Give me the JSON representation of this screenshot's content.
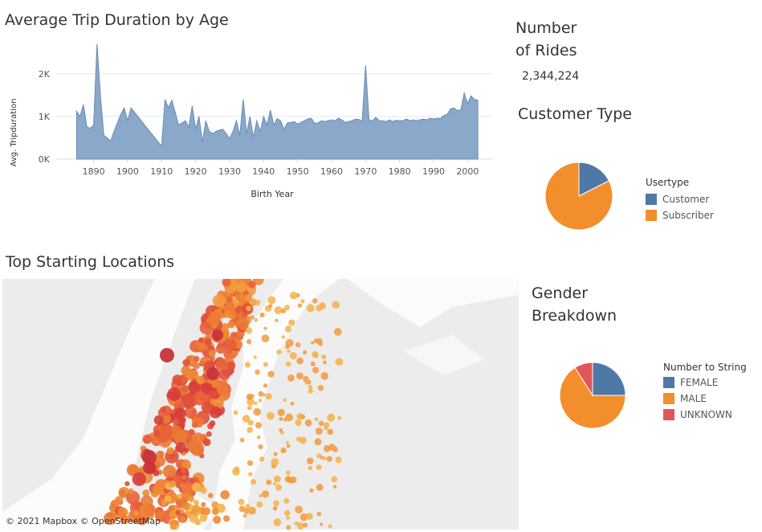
{
  "colors": {
    "area": "#8aa8c9",
    "area_line": "#6a8bb3",
    "customer": "#4e79a7",
    "subscriber": "#f28e2b",
    "female": "#4e79a7",
    "male": "#f28e2b",
    "unknown": "#e15759"
  },
  "number_of_rides": {
    "title_line1": "Number",
    "title_line2": "of Rides",
    "value": "2,344,224"
  },
  "map": {
    "title": "Top Starting Locations",
    "attribution": "© 2021 Mapbox  © OpenStreetMap"
  },
  "chart_data": [
    {
      "type": "area",
      "title": "Average Trip Duration by Age",
      "xlabel": "Birth Year",
      "ylabel": "Avg. Tripduration",
      "xlim": [
        1879,
        2007
      ],
      "ylim": [
        0,
        2900
      ],
      "x_ticks": [
        1890,
        1900,
        1910,
        1920,
        1930,
        1940,
        1950,
        1960,
        1970,
        1980,
        1990,
        2000
      ],
      "y_ticks": [
        {
          "value": 0,
          "label": "0K"
        },
        {
          "value": 1000,
          "label": "1K"
        },
        {
          "value": 2000,
          "label": "2K"
        }
      ],
      "x": [
        1885,
        1886,
        1887,
        1888,
        1889,
        1890,
        1891,
        1892,
        1893,
        1894,
        1895,
        1896,
        1897,
        1898,
        1899,
        1900,
        1901,
        1902,
        1903,
        1904,
        1905,
        1906,
        1907,
        1908,
        1909,
        1910,
        1911,
        1912,
        1913,
        1914,
        1915,
        1916,
        1917,
        1918,
        1919,
        1920,
        1921,
        1922,
        1923,
        1924,
        1925,
        1926,
        1927,
        1928,
        1929,
        1930,
        1931,
        1932,
        1933,
        1934,
        1935,
        1936,
        1937,
        1938,
        1939,
        1940,
        1941,
        1942,
        1943,
        1944,
        1945,
        1946,
        1947,
        1948,
        1949,
        1950,
        1951,
        1952,
        1953,
        1954,
        1955,
        1956,
        1957,
        1958,
        1959,
        1960,
        1961,
        1962,
        1963,
        1964,
        1965,
        1966,
        1967,
        1968,
        1969,
        1970,
        1971,
        1972,
        1973,
        1974,
        1975,
        1976,
        1977,
        1978,
        1979,
        1980,
        1981,
        1982,
        1983,
        1984,
        1985,
        1986,
        1987,
        1988,
        1989,
        1990,
        1991,
        1992,
        1993,
        1994,
        1995,
        1996,
        1997,
        1998,
        1999,
        2000,
        2001,
        2002,
        2003
      ],
      "values": [
        1120,
        1000,
        1280,
        760,
        720,
        800,
        2700,
        1500,
        560,
        500,
        420,
        650,
        850,
        1050,
        1200,
        900,
        1200,
        1100,
        1000,
        900,
        800,
        700,
        600,
        500,
        400,
        300,
        1400,
        1200,
        1380,
        1100,
        800,
        850,
        900,
        750,
        1250,
        700,
        1000,
        400,
        900,
        650,
        600,
        650,
        680,
        700,
        600,
        480,
        650,
        900,
        550,
        1400,
        600,
        1000,
        500,
        900,
        650,
        1000,
        800,
        1150,
        800,
        950,
        900,
        700,
        850,
        860,
        880,
        820,
        860,
        900,
        940,
        960,
        840,
        850,
        900,
        880,
        900,
        920,
        900,
        960,
        920,
        860,
        880,
        900,
        940,
        930,
        900,
        2200,
        920,
        900,
        980,
        900,
        900,
        880,
        920,
        880,
        910,
        900,
        900,
        940,
        900,
        920,
        900,
        920,
        940,
        920,
        960,
        940,
        960,
        950,
        1020,
        1050,
        1180,
        1200,
        1140,
        1150,
        1550,
        1300,
        1480,
        1400,
        1380
      ]
    },
    {
      "type": "pie",
      "title": "Customer Type",
      "legend_title": "Usertype",
      "labels": [
        "Customer",
        "Subscriber"
      ],
      "values": [
        17.5,
        82.5
      ]
    },
    {
      "type": "pie",
      "title": "Gender Breakdown",
      "title_line1": "Gender",
      "title_line2": "Breakdown",
      "legend_title": "Number to String",
      "labels": [
        "FEMALE",
        "MALE",
        "UNKNOWN"
      ],
      "values": [
        25,
        66,
        9
      ]
    }
  ]
}
